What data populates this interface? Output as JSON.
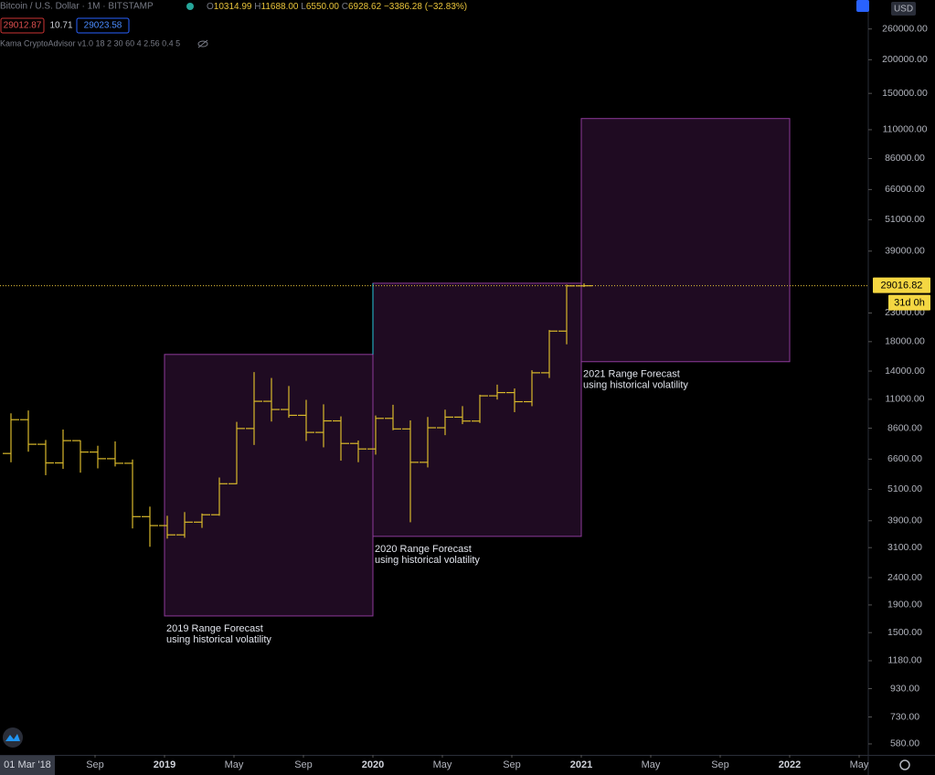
{
  "chart_data": {
    "type": "ohlc",
    "header": {
      "symbol": "Bitcoin / U.S. Dollar · 1M · BITSTAMP",
      "ohlc": [
        {
          "key": "O",
          "value": "10314.99"
        },
        {
          "key": "H",
          "value": "11688.00"
        },
        {
          "key": "L",
          "value": "6550.00"
        },
        {
          "key": "C",
          "value": "6928.62"
        }
      ],
      "change": "−3386.28 (−32.83%)",
      "bid": "29012.87",
      "spread": "10.71",
      "ask": "29023.58",
      "indicator": "Kama CryptoAdvisor v1.0 18 2 30 60 4 2.56 0.4 5",
      "currency": "USD"
    },
    "color": "#d9b92b",
    "log_scale": true,
    "grid": false,
    "x": [
      "2018-04",
      "2018-05",
      "2018-06",
      "2018-07",
      "2018-08",
      "2018-09",
      "2018-10",
      "2018-11",
      "2018-12",
      "2019-01",
      "2019-02",
      "2019-03",
      "2019-04",
      "2019-05",
      "2019-06",
      "2019-07",
      "2019-08",
      "2019-09",
      "2019-10",
      "2019-11",
      "2019-12",
      "2020-01",
      "2020-02",
      "2020-03",
      "2020-04",
      "2020-05",
      "2020-06",
      "2020-07",
      "2020-08",
      "2020-09",
      "2020-10",
      "2020-11",
      "2020-12",
      "2021-01"
    ],
    "open": [
      6928,
      9245,
      7494,
      6391,
      7730,
      7011,
      6626,
      6371,
      4039,
      3742,
      3457,
      3854,
      4105,
      5350,
      8574,
      10817,
      10085,
      9596,
      8293,
      9150,
      7546,
      7200,
      9350,
      8543,
      6424,
      8630,
      9450,
      9136,
      11335,
      11650,
      10780,
      13800,
      19700,
      28990
    ],
    "high": [
      9759,
      10000,
      7774,
      8500,
      7750,
      7400,
      7680,
      6580,
      4400,
      4069,
      4200,
      4150,
      5642,
      9074,
      13880,
      13200,
      12325,
      10950,
      10540,
      9510,
      7740,
      9580,
      10500,
      9190,
      9460,
      10070,
      10380,
      11440,
      12470,
      12070,
      14100,
      19880,
      29300,
      29600
    ],
    "low": [
      6425,
      7034,
      5755,
      6072,
      5880,
      6100,
      6200,
      3652,
      3122,
      3349,
      3373,
      3670,
      4070,
      5330,
      7450,
      9100,
      9400,
      7710,
      7300,
      6515,
      6430,
      6860,
      8450,
      3850,
      6150,
      8100,
      8900,
      8990,
      10980,
      9860,
      10375,
      13200,
      17600,
      28700
    ],
    "close": [
      9245,
      7494,
      6391,
      7730,
      7011,
      6626,
      6371,
      4039,
      3742,
      3457,
      3854,
      4105,
      5350,
      8574,
      10817,
      10085,
      9596,
      8293,
      9150,
      7546,
      7200,
      9350,
      8543,
      6424,
      8630,
      9450,
      9136,
      11335,
      11650,
      10780,
      13800,
      19700,
      28990,
      29016.82
    ],
    "ranges": [
      {
        "label": [
          "2019 Range Forecast",
          "using historical volatility"
        ],
        "x": [
          "2019-01",
          "2020-01"
        ],
        "low": 1730,
        "high": 16140
      },
      {
        "label": [
          "2020 Range Forecast",
          "using historical volatility"
        ],
        "x": [
          "2020-01",
          "2021-01"
        ],
        "low": 3413,
        "high": 29650
      },
      {
        "label": [
          "2021 Range Forecast",
          "using historical volatility"
        ],
        "x": [
          "2021-01",
          "2022-01"
        ],
        "low": 15170,
        "high": 121000
      }
    ],
    "range_fill": "#1f0b22",
    "range_stroke": "#8e3a9a",
    "last_price": 29016.82,
    "countdown": "31d 0h",
    "xlim": [
      "2018-03",
      "2022-05"
    ],
    "xticks": [
      {
        "value": "2018-03",
        "label": "01 Mar '18"
      },
      {
        "value": "2018-09",
        "label": "Sep"
      },
      {
        "value": "2019-01",
        "label": "2019"
      },
      {
        "value": "2019-05",
        "label": "May"
      },
      {
        "value": "2019-09",
        "label": "Sep"
      },
      {
        "value": "2020-01",
        "label": "2020"
      },
      {
        "value": "2020-05",
        "label": "May"
      },
      {
        "value": "2020-09",
        "label": "Sep"
      },
      {
        "value": "2021-01",
        "label": "2021"
      },
      {
        "value": "2021-05",
        "label": "May"
      },
      {
        "value": "2021-09",
        "label": "Sep"
      },
      {
        "value": "2022-01",
        "label": "2022"
      },
      {
        "value": "2022-05",
        "label": "May"
      }
    ],
    "ylim": [
      528,
      333000
    ],
    "yticks": [
      {
        "value": 260000,
        "label": "260000.00"
      },
      {
        "value": 200000,
        "label": "200000.00"
      },
      {
        "value": 150000,
        "label": "150000.00"
      },
      {
        "value": 110000,
        "label": "110000.00"
      },
      {
        "value": 86000,
        "label": "86000.00"
      },
      {
        "value": 66000,
        "label": "66000.00"
      },
      {
        "value": 51000,
        "label": "51000.00"
      },
      {
        "value": 39000,
        "label": "39000.00"
      },
      {
        "value": 23000,
        "label": "23000.00"
      },
      {
        "value": 18000,
        "label": "18000.00"
      },
      {
        "value": 14000,
        "label": "14000.00"
      },
      {
        "value": 11000,
        "label": "11000.00"
      },
      {
        "value": 8600,
        "label": "8600.00"
      },
      {
        "value": 6600,
        "label": "6600.00"
      },
      {
        "value": 5100,
        "label": "5100.00"
      },
      {
        "value": 3900,
        "label": "3900.00"
      },
      {
        "value": 3100,
        "label": "3100.00"
      },
      {
        "value": 2400,
        "label": "2400.00"
      },
      {
        "value": 1900,
        "label": "1900.00"
      },
      {
        "value": 1500,
        "label": "1500.00"
      },
      {
        "value": 1180,
        "label": "1180.00"
      },
      {
        "value": 930,
        "label": "930.00"
      },
      {
        "value": 730,
        "label": "730.00"
      },
      {
        "value": 580,
        "label": "580.00"
      }
    ]
  }
}
